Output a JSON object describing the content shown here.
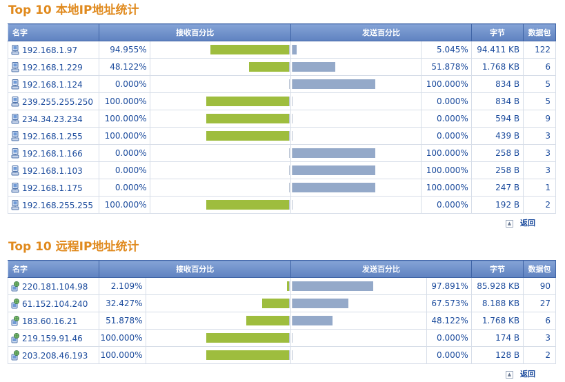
{
  "local": {
    "title_top": "Top 10",
    "title_cn": "本地IP地址统计",
    "headers": {
      "name": "名字",
      "recv": "接收百分比",
      "send": "发送百分比",
      "bytes": "字节",
      "packets": "数据包"
    },
    "rows": [
      {
        "name": "192.168.1.97",
        "recv": "94.955%",
        "recv_val": 94.955,
        "send": "5.045%",
        "send_val": 5.045,
        "bytes": "94.411 KB",
        "packets": "122"
      },
      {
        "name": "192.168.1.229",
        "recv": "48.122%",
        "recv_val": 48.122,
        "send": "51.878%",
        "send_val": 51.878,
        "bytes": "1.768 KB",
        "packets": "6"
      },
      {
        "name": "192.168.1.124",
        "recv": "0.000%",
        "recv_val": 0,
        "send": "100.000%",
        "send_val": 100,
        "bytes": "834 B",
        "packets": "5"
      },
      {
        "name": "239.255.255.250",
        "recv": "100.000%",
        "recv_val": 100,
        "send": "0.000%",
        "send_val": 0,
        "bytes": "834 B",
        "packets": "5"
      },
      {
        "name": "234.34.23.234",
        "recv": "100.000%",
        "recv_val": 100,
        "send": "0.000%",
        "send_val": 0,
        "bytes": "594 B",
        "packets": "9"
      },
      {
        "name": "192.168.1.255",
        "recv": "100.000%",
        "recv_val": 100,
        "send": "0.000%",
        "send_val": 0,
        "bytes": "439 B",
        "packets": "3"
      },
      {
        "name": "192.168.1.166",
        "recv": "0.000%",
        "recv_val": 0,
        "send": "100.000%",
        "send_val": 100,
        "bytes": "258 B",
        "packets": "3"
      },
      {
        "name": "192.168.1.103",
        "recv": "0.000%",
        "recv_val": 0,
        "send": "100.000%",
        "send_val": 100,
        "bytes": "258 B",
        "packets": "3"
      },
      {
        "name": "192.168.1.175",
        "recv": "0.000%",
        "recv_val": 0,
        "send": "100.000%",
        "send_val": 100,
        "bytes": "247 B",
        "packets": "1"
      },
      {
        "name": "192.168.255.255",
        "recv": "100.000%",
        "recv_val": 100,
        "send": "0.000%",
        "send_val": 0,
        "bytes": "192 B",
        "packets": "2"
      }
    ],
    "back_label": "返回"
  },
  "remote": {
    "title_top": "Top 10",
    "title_cn": "远程IP地址统计",
    "headers": {
      "name": "名字",
      "recv": "接收百分比",
      "send": "发送百分比",
      "bytes": "字节",
      "packets": "数据包"
    },
    "rows": [
      {
        "name": "220.181.104.98",
        "recv": "2.109%",
        "recv_val": 2.109,
        "send": "97.891%",
        "send_val": 97.891,
        "bytes": "85.928 KB",
        "packets": "90"
      },
      {
        "name": "61.152.104.240",
        "recv": "32.427%",
        "recv_val": 32.427,
        "send": "67.573%",
        "send_val": 67.573,
        "bytes": "8.188 KB",
        "packets": "27"
      },
      {
        "name": "183.60.16.21",
        "recv": "51.878%",
        "recv_val": 51.878,
        "send": "48.122%",
        "send_val": 48.122,
        "bytes": "1.768 KB",
        "packets": "6"
      },
      {
        "name": "219.159.91.46",
        "recv": "100.000%",
        "recv_val": 100,
        "send": "0.000%",
        "send_val": 0,
        "bytes": "174 B",
        "packets": "3"
      },
      {
        "name": "203.208.46.193",
        "recv": "100.000%",
        "recv_val": 100,
        "send": "0.000%",
        "send_val": 0,
        "bytes": "128 B",
        "packets": "2"
      }
    ],
    "back_label": "返回"
  },
  "colors": {
    "recv_bar": "#9ebd3e",
    "send_bar": "#94a9c9",
    "title": "#e08a1e",
    "link": "#1a4a9c"
  },
  "icons": {
    "local_host": "host-computer-icon",
    "remote_host": "network-globe-icon",
    "back": "arrow-up-icon"
  }
}
